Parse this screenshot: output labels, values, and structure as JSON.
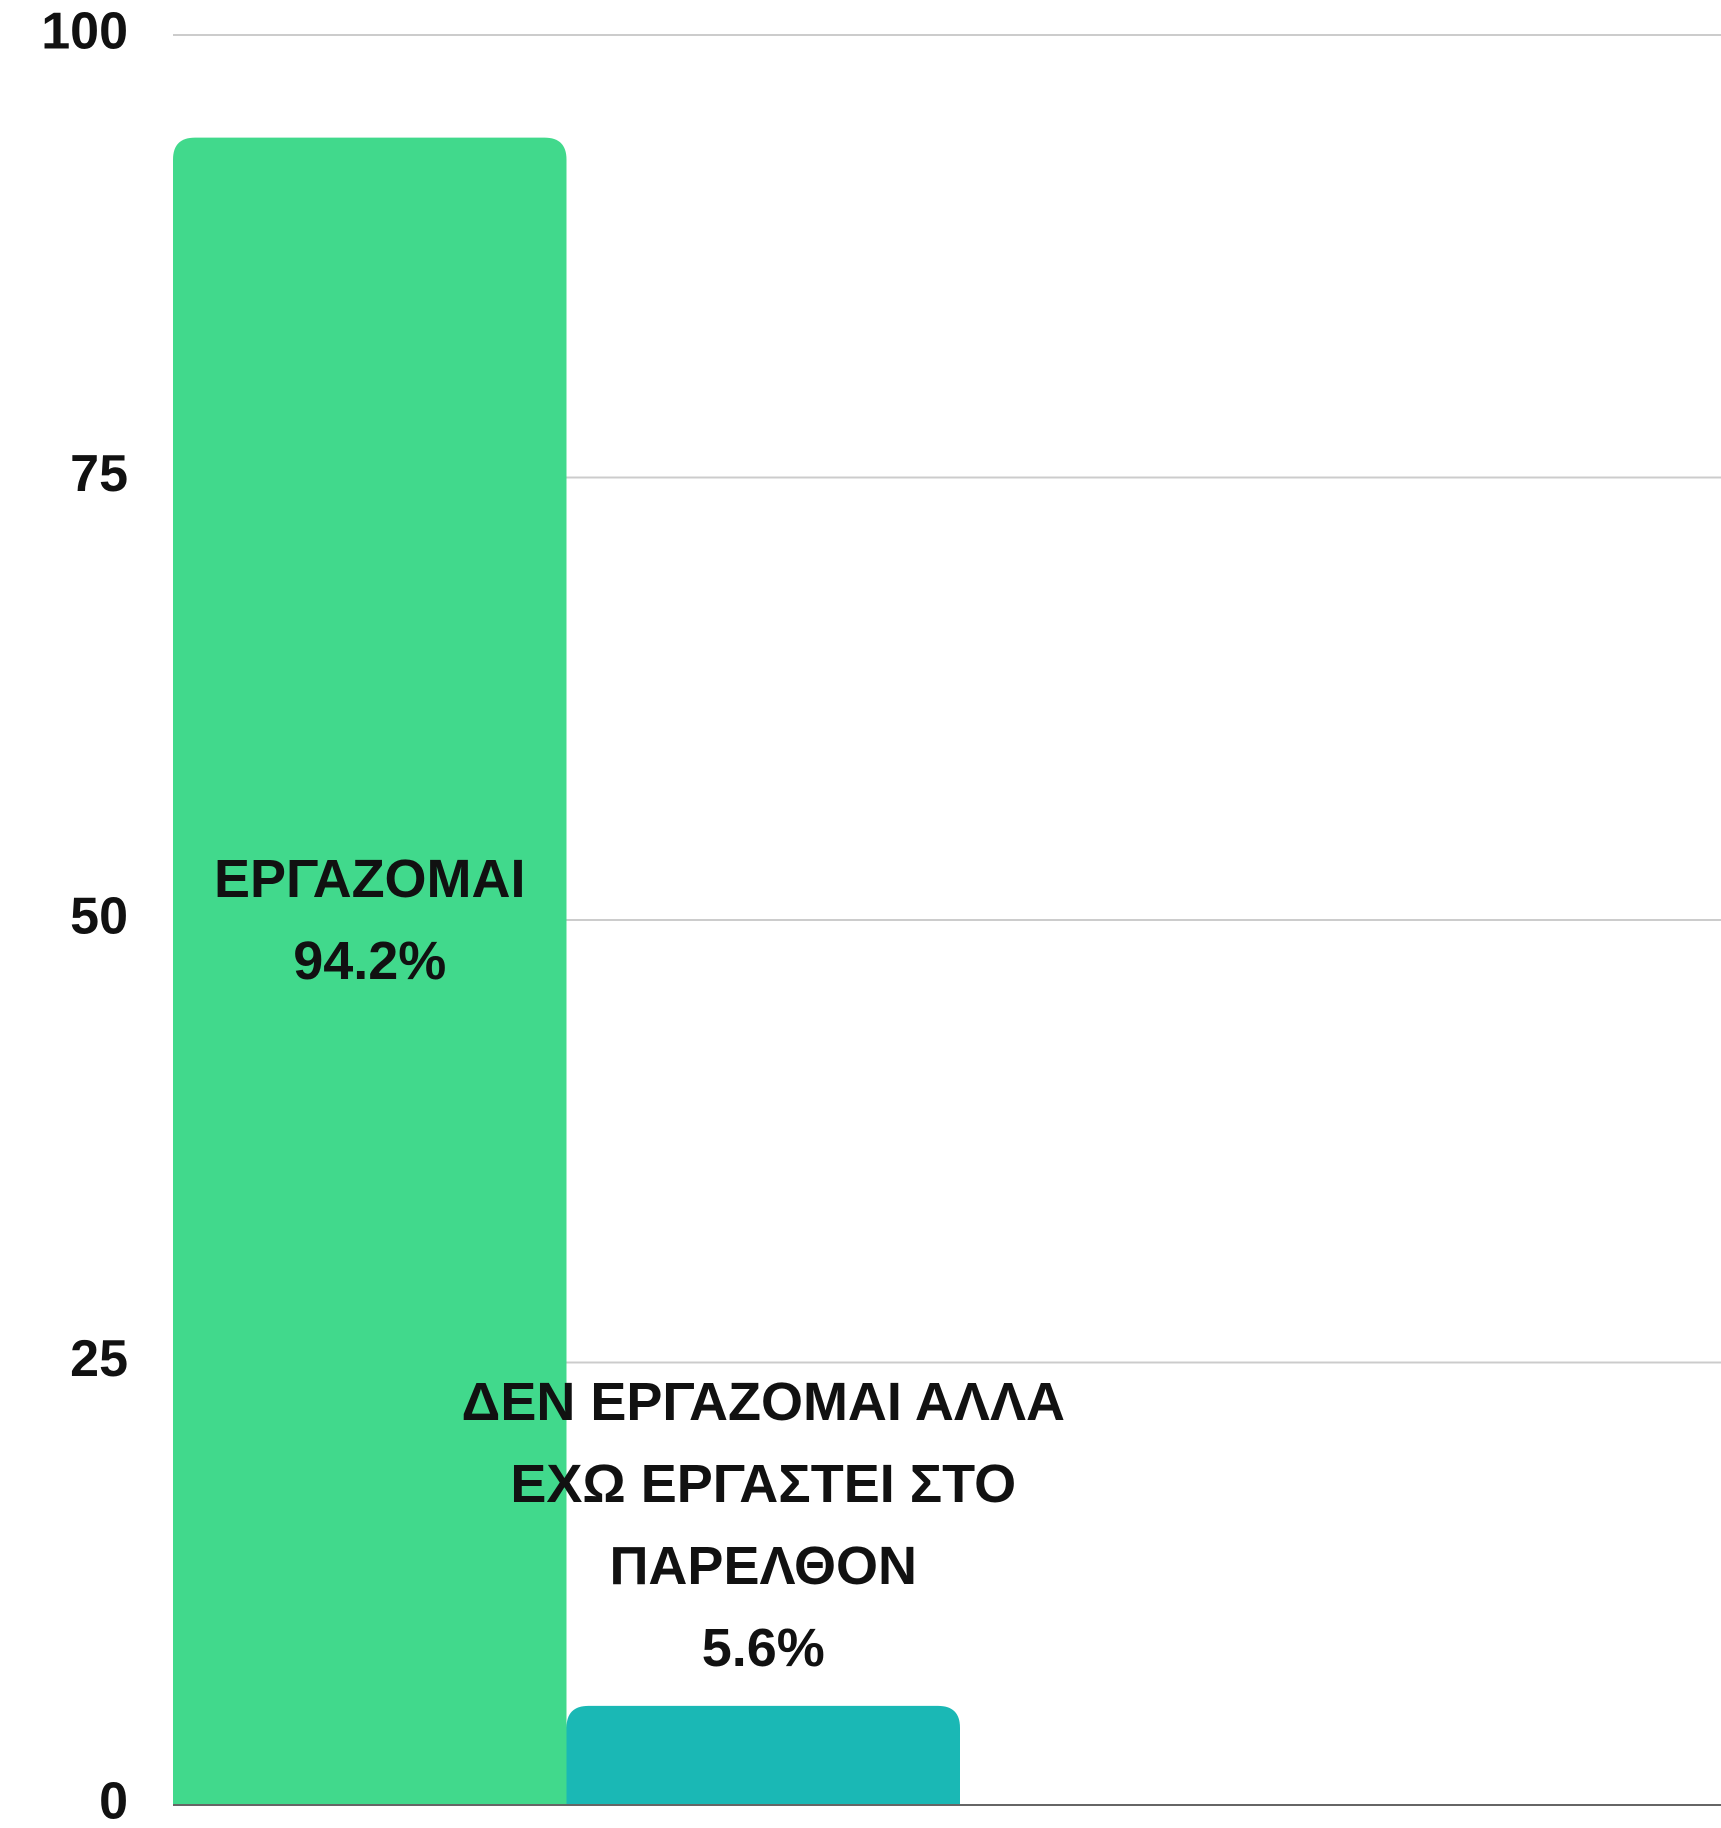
{
  "chart_data": {
    "type": "bar",
    "categories": [
      "ΕΡΓΑΖΟΜΑΙ",
      "ΔΕΝ ΕΡΓΑΖΟΜΑΙ ΑΛΛΑ ΕΧΩ ΕΡΓΑΣΤΕΙ ΣΤΟ ΠΑΡΕΛΘΟΝ"
    ],
    "values": [
      94.2,
      5.6
    ],
    "value_labels": [
      "94.2%",
      "5.6%"
    ],
    "colors": [
      "#41d98c",
      "#1ab8b5"
    ],
    "ylim": [
      0,
      100
    ],
    "yticks": [
      0,
      25,
      50,
      75,
      100
    ],
    "grid": true
  }
}
